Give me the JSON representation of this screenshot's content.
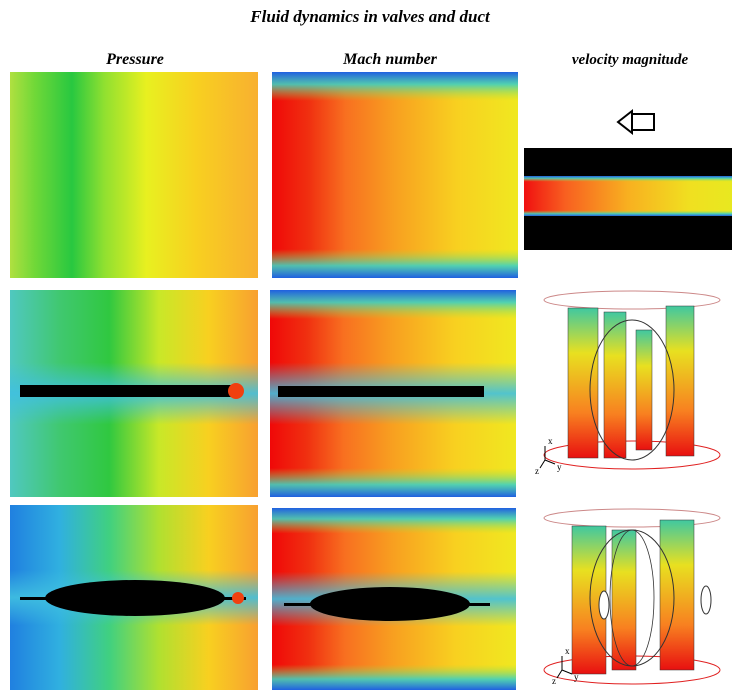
{
  "title": "Fluid dynamics in valves and duct",
  "columns": [
    "Pressure",
    "Mach number",
    "velocity magnitude"
  ],
  "axis_triads": [
    {
      "x": "x",
      "y": "y",
      "z": "z"
    },
    {
      "x": "x",
      "y": "y",
      "z": "z"
    }
  ]
}
